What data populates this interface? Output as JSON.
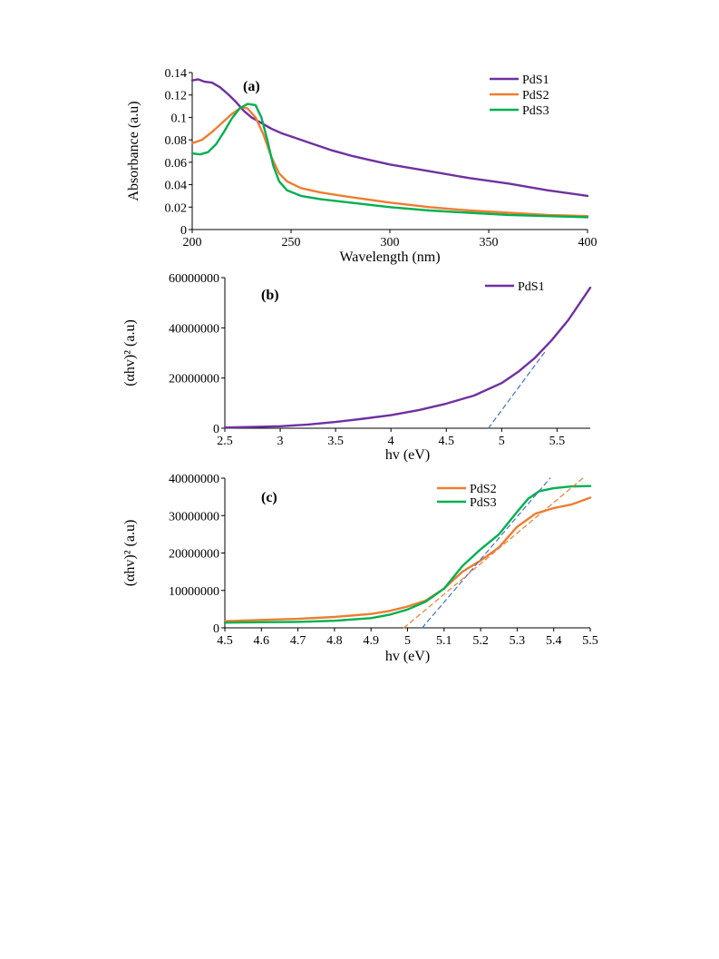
{
  "chart_data": [
    {
      "type": "line",
      "panel_label": "(a)",
      "xlabel": "Wavelength (nm)",
      "ylabel": "Absorbance (a.u)",
      "xlim": [
        200,
        400
      ],
      "ylim": [
        0,
        0.14
      ],
      "xticks": [
        200,
        250,
        300,
        350,
        400
      ],
      "xtick_labels": [
        "200",
        "250",
        "300",
        "350",
        "400"
      ],
      "yticks": [
        0,
        0.02,
        0.04,
        0.06,
        0.08,
        0.1,
        0.12,
        0.14
      ],
      "ytick_labels": [
        "0",
        "0.02",
        "0.04",
        "0.06",
        "0.08",
        "0.1",
        "0.12",
        "0.14"
      ],
      "grid": false,
      "legend_position": "top-right",
      "series": [
        {
          "name": "PdS1",
          "color": "#7030a0",
          "x": [
            200,
            203,
            206,
            210,
            214,
            218,
            222,
            226,
            230,
            235,
            240,
            245,
            250,
            260,
            270,
            280,
            290,
            300,
            320,
            340,
            360,
            380,
            400
          ],
          "y": [
            0.133,
            0.134,
            0.132,
            0.131,
            0.127,
            0.121,
            0.114,
            0.106,
            0.1,
            0.095,
            0.09,
            0.086,
            0.083,
            0.077,
            0.071,
            0.066,
            0.062,
            0.058,
            0.052,
            0.046,
            0.041,
            0.035,
            0.03
          ]
        },
        {
          "name": "PdS2",
          "color": "#ed7d31",
          "x": [
            200,
            205,
            210,
            215,
            220,
            225,
            228,
            232,
            236,
            240,
            244,
            248,
            255,
            265,
            280,
            300,
            320,
            340,
            360,
            380,
            400
          ],
          "y": [
            0.077,
            0.08,
            0.087,
            0.095,
            0.103,
            0.109,
            0.108,
            0.1,
            0.085,
            0.065,
            0.05,
            0.043,
            0.037,
            0.033,
            0.029,
            0.024,
            0.02,
            0.017,
            0.015,
            0.013,
            0.012
          ]
        },
        {
          "name": "PdS3",
          "color": "#00b050",
          "x": [
            200,
            204,
            208,
            212,
            216,
            220,
            224,
            228,
            232,
            235,
            238,
            241,
            244,
            248,
            255,
            265,
            280,
            300,
            320,
            340,
            360,
            380,
            400
          ],
          "y": [
            0.068,
            0.067,
            0.069,
            0.076,
            0.087,
            0.099,
            0.108,
            0.112,
            0.111,
            0.1,
            0.08,
            0.057,
            0.043,
            0.035,
            0.03,
            0.027,
            0.024,
            0.02,
            0.017,
            0.015,
            0.013,
            0.012,
            0.011
          ]
        }
      ]
    },
    {
      "type": "line",
      "panel_label": "(b)",
      "xlabel": "hv (eV)",
      "ylabel": "(αhv)² (a.u)",
      "xlim": [
        2.5,
        5.8
      ],
      "ylim": [
        0,
        60000000
      ],
      "xticks": [
        2.5,
        3,
        3.5,
        4,
        4.5,
        5,
        5.5
      ],
      "xtick_labels": [
        "2.5",
        "3",
        "3.5",
        "4",
        "4.5",
        "5",
        "5.5"
      ],
      "yticks": [
        0,
        20000000,
        40000000,
        60000000
      ],
      "ytick_labels": [
        "0",
        "20000000",
        "40000000",
        "60000000"
      ],
      "grid": false,
      "legend_position": "top-right",
      "series": [
        {
          "name": "PdS1",
          "color": "#7030a0",
          "x": [
            2.5,
            2.75,
            3.0,
            3.25,
            3.5,
            3.75,
            4.0,
            4.25,
            4.5,
            4.75,
            5.0,
            5.15,
            5.3,
            5.45,
            5.6,
            5.7,
            5.8
          ],
          "y": [
            300000,
            500000,
            800000,
            1500000,
            2500000,
            3800000,
            5200000,
            7200000,
            9800000,
            13000000,
            18000000,
            22500000,
            28000000,
            35000000,
            43000000,
            49500000,
            56000000
          ]
        },
        {
          "name": "",
          "color": "#4472c4",
          "style": "dashed",
          "x": [
            4.88,
            5.4
          ],
          "y": [
            0,
            31000000
          ]
        }
      ]
    },
    {
      "type": "line",
      "panel_label": "(c)",
      "xlabel": "hv (eV)",
      "ylabel": "(αhv)² (a.u)",
      "xlim": [
        4.5,
        5.5
      ],
      "ylim": [
        0,
        40000000
      ],
      "xticks": [
        4.5,
        4.6,
        4.7,
        4.8,
        4.9,
        5,
        5.1,
        5.2,
        5.3,
        5.4,
        5.5
      ],
      "xtick_labels": [
        "4.5",
        "4.6",
        "4.7",
        "4.8",
        "4.9",
        "5",
        "5.1",
        "5.2",
        "5.3",
        "5.4",
        "5.5"
      ],
      "yticks": [
        0,
        10000000,
        20000000,
        30000000,
        40000000
      ],
      "ytick_labels": [
        "0",
        "10000000",
        "20000000",
        "30000000",
        "40000000"
      ],
      "grid": false,
      "legend_position": "top-right",
      "series": [
        {
          "name": "PdS2",
          "color": "#ed7d31",
          "x": [
            4.5,
            4.6,
            4.7,
            4.8,
            4.9,
            4.95,
            5.0,
            5.05,
            5.1,
            5.15,
            5.2,
            5.25,
            5.3,
            5.35,
            5.4,
            5.45,
            5.5
          ],
          "y": [
            1800000,
            2100000,
            2400000,
            2900000,
            3700000,
            4500000,
            5700000,
            7300000,
            10500000,
            15000000,
            18000000,
            21500000,
            27000000,
            30500000,
            32000000,
            33000000,
            34800000
          ]
        },
        {
          "name": "PdS3",
          "color": "#00b050",
          "x": [
            4.5,
            4.6,
            4.7,
            4.8,
            4.9,
            4.95,
            5.0,
            5.05,
            5.1,
            5.15,
            5.2,
            5.25,
            5.3,
            5.33,
            5.36,
            5.4,
            5.45,
            5.5
          ],
          "y": [
            1400000,
            1500000,
            1600000,
            1900000,
            2600000,
            3500000,
            4900000,
            7000000,
            10500000,
            16500000,
            21000000,
            25000000,
            31000000,
            34500000,
            36500000,
            37300000,
            37800000,
            37900000
          ]
        },
        {
          "name": "",
          "color": "#ed7d31",
          "style": "dashed",
          "x": [
            4.99,
            5.48
          ],
          "y": [
            0,
            40000000
          ]
        },
        {
          "name": "",
          "color": "#4472c4",
          "style": "dashed",
          "x": [
            5.04,
            5.39
          ],
          "y": [
            0,
            40000000
          ]
        }
      ]
    }
  ]
}
